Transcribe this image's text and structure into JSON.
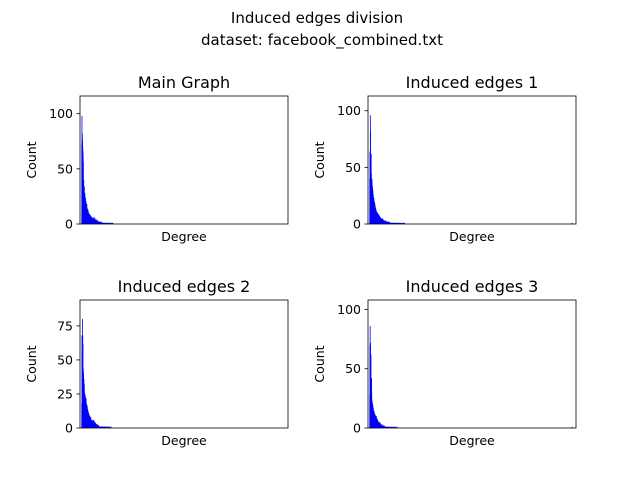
{
  "suptitle": {
    "line1": "Induced edges division",
    "line2": "dataset: facebook_combined.txt"
  },
  "colors": {
    "bars": "#0000ff",
    "axes": "#000000",
    "background": "#ffffff"
  },
  "chart_data": [
    {
      "type": "bar",
      "title": "Main Graph",
      "xlabel": "Degree",
      "ylabel": "Count",
      "xlim": [
        -8,
        1050
      ],
      "ylim": [
        0,
        116
      ],
      "yticks": [
        0,
        50,
        100
      ],
      "x": [
        1,
        2,
        3,
        4,
        5,
        6,
        7,
        8,
        9,
        10,
        11,
        12,
        13,
        14,
        15,
        16,
        17,
        18,
        19,
        20,
        21,
        22,
        23,
        24,
        25,
        26,
        27,
        28,
        29,
        30,
        31,
        32,
        33,
        34,
        35,
        36,
        37,
        38,
        39,
        40,
        41,
        42,
        43,
        44,
        45,
        46,
        47,
        48,
        49,
        50,
        51,
        52,
        53,
        54,
        55,
        56,
        57,
        58,
        59,
        60,
        61,
        62,
        63,
        64,
        65,
        66,
        67,
        68,
        69,
        70,
        71,
        72,
        73,
        74,
        75,
        76,
        77,
        78,
        79,
        80,
        81,
        82,
        83,
        84,
        85,
        86,
        87,
        88,
        89,
        90,
        91,
        92,
        93,
        94,
        95,
        96,
        97,
        98,
        99,
        100,
        101,
        102,
        103,
        104,
        105,
        106,
        107,
        108,
        109,
        110,
        111,
        112,
        113,
        114,
        115,
        116,
        117,
        118,
        119,
        120,
        121,
        122,
        123,
        124,
        125,
        126,
        127,
        128,
        129,
        130,
        131,
        132,
        133,
        134,
        135,
        136,
        137,
        138,
        139,
        140,
        141,
        142,
        143,
        144,
        145,
        146,
        147,
        148,
        149,
        150,
        151,
        152,
        153,
        154,
        155,
        156,
        157,
        158,
        159,
        160
      ],
      "values": [
        72,
        98,
        74,
        82,
        76,
        70,
        66,
        62,
        56,
        38,
        40,
        32,
        30,
        34,
        26,
        24,
        28,
        22,
        20,
        24,
        18,
        21,
        16,
        19,
        17,
        15,
        18,
        14,
        12,
        14,
        11,
        13,
        10,
        12,
        9,
        8,
        10,
        9,
        8,
        7,
        9,
        8,
        6,
        7,
        5,
        8,
        6,
        5,
        7,
        5,
        6,
        4,
        5,
        6,
        4,
        5,
        3,
        4,
        6,
        4,
        5,
        3,
        4,
        5,
        6,
        4,
        3,
        5,
        4,
        3,
        4,
        3,
        4,
        3,
        2,
        3,
        4,
        2,
        3,
        2,
        3,
        2,
        2,
        3,
        2,
        1,
        2,
        2,
        1,
        2,
        1,
        2,
        1,
        1,
        2,
        1,
        1,
        2,
        1,
        1,
        1,
        2,
        1,
        1,
        1,
        1,
        1,
        1,
        1,
        1,
        1,
        1,
        0,
        1,
        1,
        1,
        0,
        1,
        1,
        0,
        1,
        1,
        0,
        1,
        0,
        1,
        1,
        0,
        1,
        0,
        1,
        0,
        1,
        0,
        1,
        0,
        1,
        0,
        0,
        1,
        0,
        1,
        0,
        0,
        1,
        0,
        1,
        0,
        0,
        1,
        0,
        0,
        1,
        0,
        0,
        1,
        0,
        0,
        1,
        0
      ]
    },
    {
      "type": "bar",
      "title": "Induced edges 1",
      "xlabel": "Degree",
      "ylabel": "Count",
      "xlim": [
        -8,
        1050
      ],
      "ylim": [
        0,
        113
      ],
      "yticks": [
        0,
        50,
        100
      ],
      "x": [
        1,
        2,
        3,
        4,
        5,
        6,
        7,
        8,
        9,
        10,
        11,
        12,
        13,
        14,
        15,
        16,
        17,
        18,
        19,
        20,
        21,
        22,
        23,
        24,
        25,
        26,
        27,
        28,
        29,
        30,
        31,
        32,
        33,
        34,
        35,
        36,
        37,
        38,
        39,
        40,
        41,
        42,
        43,
        44,
        45,
        46,
        47,
        48,
        49,
        50,
        51,
        52,
        53,
        54,
        55,
        56,
        57,
        58,
        59,
        60,
        61,
        62,
        63,
        64,
        65,
        66,
        67,
        68,
        69,
        70,
        71,
        72,
        73,
        74,
        75,
        76,
        77,
        78,
        79,
        80,
        81,
        82,
        83,
        84,
        85,
        86,
        87,
        88,
        89,
        90,
        91,
        92,
        93,
        94,
        95,
        96,
        97,
        98,
        99,
        100,
        101,
        102,
        103,
        104,
        105,
        106,
        107,
        108,
        109,
        110,
        111,
        112,
        113,
        114,
        115,
        116,
        117,
        118,
        119,
        120,
        121,
        122,
        123,
        124,
        125,
        126,
        127,
        128,
        129,
        130,
        131,
        132,
        133,
        134,
        135,
        136,
        137,
        138,
        139,
        140,
        141,
        142,
        143,
        144,
        145,
        146,
        147,
        148,
        149,
        150,
        151,
        152,
        153,
        154,
        155,
        156,
        157,
        158,
        159,
        160,
        161,
        162,
        163,
        164,
        165,
        166,
        167,
        168,
        169,
        170,
        171,
        172,
        173,
        174,
        175,
        176,
        177,
        178,
        179,
        180,
        1030
      ],
      "values": [
        40,
        64,
        60,
        96,
        82,
        60,
        55,
        62,
        45,
        40,
        38,
        40,
        36,
        30,
        33,
        28,
        30,
        25,
        26,
        22,
        20,
        23,
        18,
        16,
        20,
        15,
        18,
        14,
        16,
        12,
        14,
        13,
        11,
        12,
        10,
        11,
        9,
        10,
        8,
        9,
        10,
        7,
        8,
        6,
        9,
        6,
        7,
        8,
        5,
        6,
        7,
        5,
        6,
        4,
        5,
        6,
        4,
        5,
        4,
        3,
        5,
        4,
        3,
        4,
        5,
        3,
        4,
        3,
        2,
        4,
        3,
        2,
        3,
        2,
        3,
        2,
        3,
        2,
        2,
        3,
        2,
        1,
        2,
        3,
        1,
        2,
        1,
        2,
        2,
        1,
        2,
        1,
        1,
        2,
        1,
        1,
        2,
        1,
        1,
        1,
        2,
        1,
        1,
        1,
        1,
        0,
        1,
        1,
        1,
        0,
        1,
        1,
        0,
        1,
        1,
        0,
        1,
        0,
        1,
        1,
        0,
        1,
        0,
        1,
        0,
        1,
        0,
        1,
        0,
        0,
        1,
        0,
        1,
        0,
        0,
        1,
        0,
        1,
        0,
        0,
        1,
        0,
        0,
        1,
        0,
        0,
        1,
        0,
        0,
        1,
        0,
        0,
        1,
        0,
        0,
        0,
        1,
        0,
        0,
        1,
        0,
        0,
        0,
        1,
        0,
        0,
        1,
        0,
        0,
        0,
        1,
        0,
        0,
        0,
        1,
        0,
        0,
        1,
        0,
        0,
        1
      ]
    },
    {
      "type": "bar",
      "title": "Induced edges 2",
      "xlabel": "Degree",
      "ylabel": "Count",
      "xlim": [
        -8,
        1050
      ],
      "ylim": [
        0,
        94
      ],
      "yticks": [
        0,
        25,
        50,
        75
      ],
      "x": [
        1,
        2,
        3,
        4,
        5,
        6,
        7,
        8,
        9,
        10,
        11,
        12,
        13,
        14,
        15,
        16,
        17,
        18,
        19,
        20,
        21,
        22,
        23,
        24,
        25,
        26,
        27,
        28,
        29,
        30,
        31,
        32,
        33,
        34,
        35,
        36,
        37,
        38,
        39,
        40,
        41,
        42,
        43,
        44,
        45,
        46,
        47,
        48,
        49,
        50,
        51,
        52,
        53,
        54,
        55,
        56,
        57,
        58,
        59,
        60,
        61,
        62,
        63,
        64,
        65,
        66,
        67,
        68,
        69,
        70,
        71,
        72,
        73,
        74,
        75,
        76,
        77,
        78,
        79,
        80,
        81,
        82,
        83,
        84,
        85,
        86,
        87,
        88,
        89,
        90,
        91,
        92,
        93,
        94,
        95,
        96,
        97,
        98,
        99,
        100,
        101,
        102,
        103,
        104,
        105,
        106,
        107,
        108,
        109,
        110,
        111,
        112,
        113,
        114,
        115,
        116,
        117,
        118,
        119,
        120,
        121,
        122,
        123,
        124,
        125,
        126,
        127,
        128,
        129,
        130,
        131,
        132,
        133,
        134,
        135,
        136,
        137,
        138,
        139,
        140,
        141,
        142,
        143,
        144,
        145,
        146,
        147,
        148,
        149,
        150
      ],
      "values": [
        18,
        68,
        56,
        60,
        80,
        68,
        62,
        44,
        42,
        40,
        30,
        36,
        28,
        32,
        24,
        26,
        22,
        20,
        24,
        18,
        21,
        16,
        22,
        15,
        18,
        14,
        17,
        12,
        16,
        11,
        14,
        13,
        10,
        12,
        9,
        11,
        8,
        10,
        9,
        8,
        7,
        9,
        6,
        8,
        7,
        5,
        8,
        6,
        5,
        4,
        6,
        5,
        4,
        5,
        3,
        4,
        6,
        5,
        4,
        3,
        5,
        6,
        4,
        3,
        5,
        4,
        3,
        4,
        2,
        3,
        4,
        2,
        3,
        2,
        3,
        2,
        1,
        2,
        3,
        1,
        2,
        2,
        1,
        2,
        1,
        1,
        2,
        1,
        1,
        1,
        1,
        1,
        0,
        1,
        1,
        1,
        0,
        1,
        1,
        0,
        1,
        0,
        1,
        1,
        0,
        1,
        0,
        1,
        0,
        1,
        0,
        0,
        1,
        0,
        1,
        0,
        0,
        1,
        0,
        0,
        1,
        0,
        0,
        1,
        0,
        0,
        1,
        0,
        0,
        0,
        1,
        0,
        0,
        1,
        0,
        0,
        0,
        1,
        0,
        0,
        0,
        1,
        0,
        0,
        0,
        1,
        0,
        0,
        0,
        1
      ]
    },
    {
      "type": "bar",
      "title": "Induced edges 3",
      "xlabel": "Degree",
      "ylabel": "Count",
      "xlim": [
        -8,
        1050
      ],
      "ylim": [
        0,
        108
      ],
      "yticks": [
        0,
        50,
        100
      ],
      "x": [
        1,
        2,
        3,
        4,
        5,
        6,
        7,
        8,
        9,
        10,
        11,
        12,
        13,
        14,
        15,
        16,
        17,
        18,
        19,
        20,
        21,
        22,
        23,
        24,
        25,
        26,
        27,
        28,
        29,
        30,
        31,
        32,
        33,
        34,
        35,
        36,
        37,
        38,
        39,
        40,
        41,
        42,
        43,
        44,
        45,
        46,
        47,
        48,
        49,
        50,
        51,
        52,
        53,
        54,
        55,
        56,
        57,
        58,
        59,
        60,
        61,
        62,
        63,
        64,
        65,
        66,
        67,
        68,
        69,
        70,
        71,
        72,
        73,
        74,
        75,
        76,
        77,
        78,
        79,
        80,
        81,
        82,
        83,
        84,
        85,
        86,
        87,
        88,
        89,
        90,
        91,
        92,
        93,
        94,
        95,
        96,
        97,
        98,
        99,
        100,
        101,
        102,
        103,
        104,
        105,
        106,
        107,
        108,
        109,
        110,
        111,
        112,
        113,
        114,
        115,
        116,
        117,
        118,
        119,
        120,
        121,
        122,
        123,
        124,
        125,
        126,
        127,
        128,
        129,
        130,
        131,
        132,
        133,
        134,
        135,
        136,
        137,
        138,
        139,
        140,
        1030
      ],
      "values": [
        28,
        70,
        86,
        60,
        72,
        56,
        62,
        42,
        40,
        42,
        30,
        24,
        22,
        20,
        21,
        18,
        19,
        16,
        17,
        14,
        15,
        13,
        12,
        14,
        11,
        10,
        12,
        9,
        11,
        8,
        10,
        9,
        7,
        8,
        10,
        6,
        7,
        8,
        5,
        6,
        7,
        5,
        6,
        4,
        5,
        4,
        3,
        5,
        4,
        3,
        4,
        5,
        3,
        2,
        4,
        3,
        2,
        3,
        2,
        3,
        2,
        2,
        1,
        2,
        3,
        1,
        2,
        1,
        2,
        1,
        1,
        2,
        1,
        1,
        1,
        2,
        1,
        1,
        0,
        1,
        1,
        1,
        0,
        1,
        1,
        0,
        1,
        1,
        0,
        1,
        0,
        1,
        0,
        1,
        0,
        1,
        0,
        0,
        1,
        0,
        1,
        0,
        0,
        1,
        0,
        0,
        1,
        0,
        0,
        1,
        0,
        0,
        1,
        0,
        0,
        1,
        0,
        0,
        0,
        1,
        0,
        0,
        1,
        0,
        0,
        0,
        1,
        0,
        0,
        0,
        1,
        0,
        0,
        0,
        1,
        0,
        0,
        0,
        0,
        1,
        1
      ]
    }
  ]
}
